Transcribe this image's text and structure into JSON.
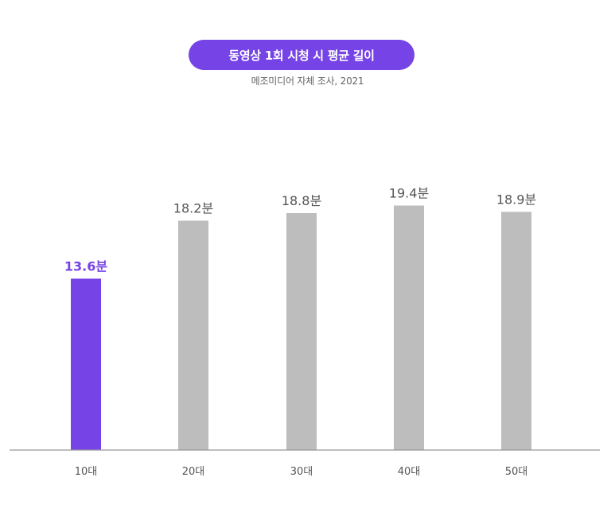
{
  "header": {
    "title": "동영상 1회 시청 시 평균 길이",
    "subtitle": "메조미디어 자체 조사, 2021"
  },
  "colors": {
    "accent": "#7644e6",
    "bar_default": "#bdbdbd",
    "label_default": "#555555",
    "axis": "#999999"
  },
  "chart_data": {
    "type": "bar",
    "title": "동영상 1회 시청 시 평균 길이",
    "subtitle": "메조미디어 자체 조사, 2021",
    "categories": [
      "10대",
      "20대",
      "30대",
      "40대",
      "50대"
    ],
    "values": [
      13.6,
      18.2,
      18.8,
      19.4,
      18.9
    ],
    "value_labels": [
      "13.6분",
      "18.2분",
      "18.8분",
      "19.4분",
      "18.9분"
    ],
    "highlight_index": 0,
    "xlabel": "",
    "ylabel": "",
    "ylim": [
      0,
      25
    ],
    "grid": false,
    "legend": "none"
  }
}
